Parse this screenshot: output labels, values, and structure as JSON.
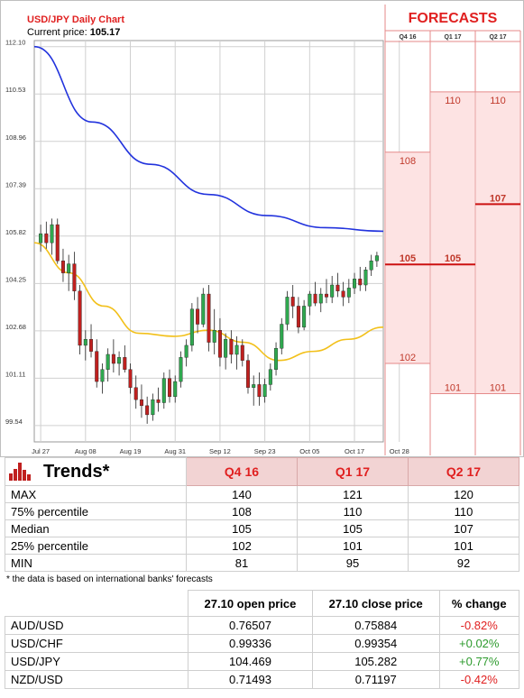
{
  "chart_data": {
    "type": "candlestick",
    "title": "USD/JPY Daily Chart",
    "current_price_label": "Current price:",
    "current_price": "105.17",
    "ylim": [
      99.0,
      112.3
    ],
    "y_ticks": [
      "112.10",
      "110.53",
      "108.96",
      "107.39",
      "105.82",
      "104.25",
      "102.68",
      "101.11",
      "99.54"
    ],
    "x_ticks": [
      "Jul 27",
      "Aug 08",
      "Aug 19",
      "Aug 31",
      "Sep 12",
      "Sep 23",
      "Oct 05",
      "Oct 17",
      "Oct 28"
    ],
    "x_tick_index": [
      0,
      8,
      16,
      24,
      32,
      40,
      48,
      56,
      64
    ],
    "grid": true,
    "candles": [
      [
        105.6,
        106.2,
        105.3,
        105.9
      ],
      [
        105.9,
        106.3,
        105.4,
        105.6
      ],
      [
        105.6,
        106.4,
        105.2,
        106.2
      ],
      [
        106.2,
        106.4,
        104.9,
        105.0
      ],
      [
        105.0,
        105.4,
        104.3,
        104.6
      ],
      [
        104.6,
        105.2,
        104.0,
        104.9
      ],
      [
        104.9,
        105.3,
        103.7,
        104.0
      ],
      [
        104.0,
        104.2,
        101.9,
        102.2
      ],
      [
        102.2,
        102.7,
        101.7,
        102.4
      ],
      [
        102.4,
        102.9,
        101.8,
        102.0
      ],
      [
        102.0,
        102.4,
        100.8,
        101.0
      ],
      [
        101.0,
        101.6,
        100.6,
        101.4
      ],
      [
        101.4,
        102.1,
        101.0,
        101.9
      ],
      [
        101.9,
        102.4,
        101.3,
        101.6
      ],
      [
        101.6,
        102.0,
        101.2,
        101.8
      ],
      [
        101.8,
        102.2,
        101.3,
        101.4
      ],
      [
        101.4,
        101.6,
        100.6,
        100.8
      ],
      [
        100.8,
        101.2,
        100.1,
        100.4
      ],
      [
        100.4,
        100.9,
        99.8,
        100.2
      ],
      [
        100.2,
        100.5,
        99.6,
        99.9
      ],
      [
        99.9,
        100.6,
        99.7,
        100.4
      ],
      [
        100.4,
        100.8,
        100.0,
        100.3
      ],
      [
        100.3,
        101.3,
        100.1,
        101.1
      ],
      [
        101.1,
        101.4,
        100.3,
        100.5
      ],
      [
        100.5,
        101.2,
        100.3,
        101.0
      ],
      [
        101.0,
        102.0,
        100.8,
        101.8
      ],
      [
        101.8,
        102.4,
        101.5,
        102.2
      ],
      [
        102.2,
        103.6,
        102.0,
        103.4
      ],
      [
        103.4,
        103.8,
        102.6,
        102.9
      ],
      [
        102.9,
        104.1,
        102.8,
        103.9
      ],
      [
        103.9,
        104.2,
        102.0,
        102.3
      ],
      [
        102.3,
        103.4,
        101.9,
        102.7
      ],
      [
        102.7,
        103.1,
        101.5,
        101.8
      ],
      [
        101.8,
        102.6,
        101.4,
        102.4
      ],
      [
        102.4,
        102.7,
        101.6,
        101.9
      ],
      [
        101.9,
        102.5,
        101.4,
        102.2
      ],
      [
        102.2,
        102.4,
        101.5,
        101.7
      ],
      [
        101.7,
        101.9,
        100.6,
        100.8
      ],
      [
        100.8,
        101.2,
        100.2,
        100.9
      ],
      [
        100.9,
        101.3,
        100.2,
        100.5
      ],
      [
        100.5,
        101.1,
        100.3,
        100.9
      ],
      [
        100.9,
        101.6,
        100.7,
        101.4
      ],
      [
        101.4,
        102.3,
        101.2,
        102.1
      ],
      [
        102.1,
        103.1,
        101.9,
        102.9
      ],
      [
        102.9,
        104.0,
        102.7,
        103.8
      ],
      [
        103.8,
        104.2,
        103.1,
        103.5
      ],
      [
        103.5,
        103.8,
        102.6,
        102.8
      ],
      [
        102.8,
        103.7,
        102.7,
        103.5
      ],
      [
        103.5,
        104.0,
        103.2,
        103.9
      ],
      [
        103.9,
        104.3,
        103.5,
        103.6
      ],
      [
        103.6,
        104.1,
        103.3,
        103.9
      ],
      [
        103.9,
        104.4,
        103.6,
        103.8
      ],
      [
        103.8,
        104.5,
        103.6,
        104.2
      ],
      [
        104.2,
        104.6,
        103.8,
        104.0
      ],
      [
        104.0,
        104.3,
        103.5,
        103.8
      ],
      [
        103.8,
        104.4,
        103.6,
        104.1
      ],
      [
        104.1,
        104.6,
        103.9,
        104.4
      ],
      [
        104.4,
        104.8,
        104.0,
        104.2
      ],
      [
        104.2,
        104.8,
        104.0,
        104.7
      ],
      [
        104.7,
        105.2,
        104.5,
        105.0
      ],
      [
        105.0,
        105.3,
        104.8,
        105.17
      ]
    ],
    "sma_blue": [
      112.1,
      109.6,
      108.2,
      107.2,
      106.5,
      106.1,
      105.98
    ],
    "sma_yellow": [
      105.6,
      104.6,
      103.5,
      102.6,
      102.5,
      102.7,
      102.3,
      101.7,
      102.0,
      102.4,
      102.8
    ]
  },
  "forecasts": {
    "header": "FORECASTS",
    "quarters": [
      "Q4 16",
      "Q1 17",
      "Q2 17"
    ],
    "q4": {
      "top": "108",
      "median": "105",
      "bottom": "102",
      "top_val": 108,
      "median_val": 105,
      "bottom_val": 102
    },
    "q1": {
      "top": "110",
      "median": "105",
      "bottom": "101",
      "top_val": 110,
      "median_val": 105,
      "bottom_val": 101
    },
    "q2": {
      "top": "110",
      "median": "107",
      "bottom": "101",
      "top_val": 110,
      "median_val": 107,
      "bottom_val": 101
    }
  },
  "trends": {
    "title": "Trends*",
    "columns": [
      "Q4 16",
      "Q1 17",
      "Q2 17"
    ],
    "rows": [
      {
        "label": "MAX",
        "values": [
          "140",
          "121",
          "120"
        ]
      },
      {
        "label": "75% percentile",
        "values": [
          "108",
          "110",
          "110"
        ]
      },
      {
        "label": "Median",
        "values": [
          "105",
          "105",
          "107"
        ]
      },
      {
        "label": "25% percentile",
        "values": [
          "102",
          "101",
          "101"
        ]
      },
      {
        "label": "MIN",
        "values": [
          "81",
          "95",
          "92"
        ]
      }
    ],
    "footnote": "* the data is based on international banks' forecasts"
  },
  "fx": {
    "columns": [
      "27.10 open price",
      "27.10 close price",
      "% change"
    ],
    "rows": [
      {
        "pair": "AUD/USD",
        "open": "0.76507",
        "close": "0.75884",
        "change": "-0.82%"
      },
      {
        "pair": "USD/CHF",
        "open": "0.99336",
        "close": "0.99354",
        "change": "+0.02%"
      },
      {
        "pair": "USD/JPY",
        "open": "104.469",
        "close": "105.282",
        "change": "+0.77%"
      },
      {
        "pair": "NZD/USD",
        "open": "0.71493",
        "close": "0.71197",
        "change": "-0.42%"
      }
    ]
  },
  "colors": {
    "up": "#2fa84f",
    "down": "#c0201f",
    "sma_blue": "#2233dd",
    "sma_yellow": "#f2c01a",
    "forecast_bg": "#fde3e3",
    "accent": "#e02020"
  }
}
